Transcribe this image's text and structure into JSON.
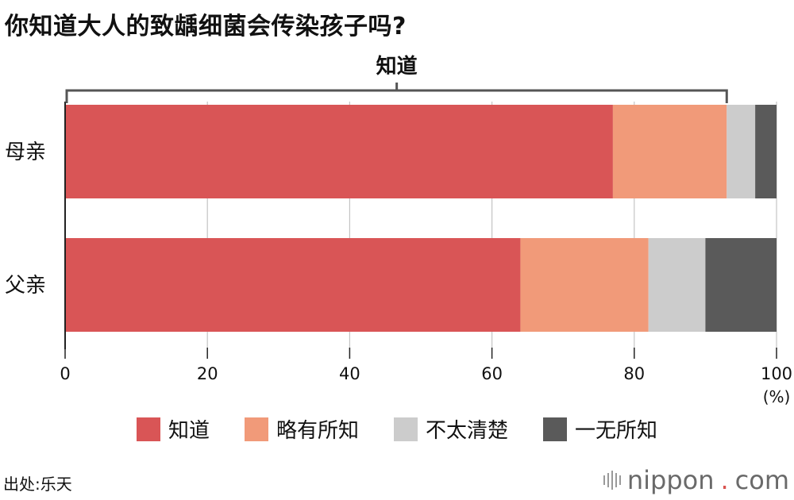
{
  "title": "你知道大人的致龋细菌会传染孩子吗?",
  "chart_data": {
    "type": "bar",
    "orientation": "horizontal",
    "stacked": true,
    "categories": [
      "母亲",
      "父亲"
    ],
    "series": [
      {
        "name": "知道",
        "values": [
          77,
          64
        ],
        "color": "#d95556"
      },
      {
        "name": "略有所知",
        "values": [
          16,
          18
        ],
        "color": "#f19a79"
      },
      {
        "name": "不太清楚",
        "values": [
          4,
          8
        ],
        "color": "#cccccc"
      },
      {
        "name": "一无所知",
        "values": [
          3,
          10
        ],
        "color": "#5a5a5a"
      }
    ],
    "xlim": [
      0,
      100
    ],
    "xticks": [
      0,
      20,
      40,
      60,
      80,
      100
    ],
    "xunit": "(%)",
    "grid": true,
    "legend": "bottom",
    "annotation": {
      "label": "知道",
      "range": [
        0,
        93
      ]
    }
  },
  "source": "出处:乐天",
  "brand": {
    "name": "nippon",
    "dot": ".",
    "tld": "com"
  }
}
